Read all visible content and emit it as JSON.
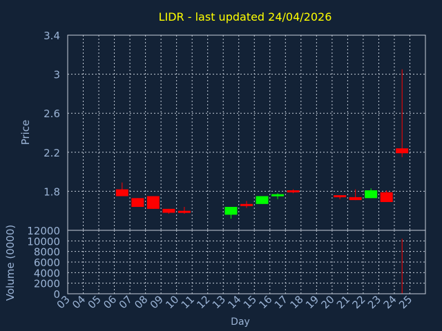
{
  "colors": {
    "background": "#132236",
    "frame": "#c8d0dc",
    "grid": "#c8d0dc",
    "axis_text": "#9bb4d6",
    "title": "#ffff00",
    "up": "#00ff00",
    "down": "#ff0000",
    "volume": "#ff0000"
  },
  "chart_data": [
    {
      "type": "candlestick",
      "title": "LIDR - last updated 24/04/2026",
      "ylabel": "Price",
      "ylim": [
        1.4,
        3.4
      ],
      "yticks": [
        "3.4",
        "3",
        "2.6",
        "2.2",
        "1.8"
      ],
      "ytick_values": [
        3.4,
        3.0,
        2.6,
        2.2,
        1.8
      ],
      "grid": true,
      "x_days": [
        "03",
        "04",
        "05",
        "06",
        "07",
        "08",
        "09",
        "10",
        "11",
        "12",
        "13",
        "14",
        "15",
        "16",
        "17",
        "18",
        "19",
        "20",
        "21",
        "22",
        "23",
        "24",
        "25"
      ],
      "candles": [
        {
          "day": "06",
          "open": 1.82,
          "close": 1.75,
          "high": 1.89,
          "low": 1.75,
          "dir": "down"
        },
        {
          "day": "07",
          "open": 1.73,
          "close": 1.64,
          "high": 1.73,
          "low": 1.64,
          "dir": "down"
        },
        {
          "day": "08",
          "open": 1.75,
          "close": 1.62,
          "high": 1.75,
          "low": 1.62,
          "dir": "down"
        },
        {
          "day": "09",
          "open": 1.62,
          "close": 1.58,
          "high": 1.62,
          "low": 1.57,
          "dir": "down"
        },
        {
          "day": "10",
          "open": 1.6,
          "close": 1.58,
          "high": 1.64,
          "low": 1.57,
          "dir": "down"
        },
        {
          "day": "13",
          "open": 1.56,
          "close": 1.64,
          "high": 1.64,
          "low": 1.52,
          "dir": "up"
        },
        {
          "day": "14",
          "open": 1.67,
          "close": 1.65,
          "high": 1.7,
          "low": 1.63,
          "dir": "down"
        },
        {
          "day": "15",
          "open": 1.67,
          "close": 1.75,
          "high": 1.75,
          "low": 1.67,
          "dir": "up"
        },
        {
          "day": "16",
          "open": 1.76,
          "close": 1.77,
          "high": 1.78,
          "low": 1.72,
          "dir": "up"
        },
        {
          "day": "17",
          "open": 1.81,
          "close": 1.8,
          "high": 1.82,
          "low": 1.78,
          "dir": "down"
        },
        {
          "day": "20",
          "open": 1.76,
          "close": 1.74,
          "high": 1.76,
          "low": 1.72,
          "dir": "down"
        },
        {
          "day": "21",
          "open": 1.74,
          "close": 1.71,
          "high": 1.82,
          "low": 1.71,
          "dir": "down"
        },
        {
          "day": "22",
          "open": 1.73,
          "close": 1.81,
          "high": 1.83,
          "low": 1.73,
          "dir": "up"
        },
        {
          "day": "23",
          "open": 1.79,
          "close": 1.69,
          "high": 1.81,
          "low": 1.69,
          "dir": "down"
        },
        {
          "day": "24",
          "open": 2.24,
          "close": 2.19,
          "high": 3.05,
          "low": 2.15,
          "dir": "down"
        }
      ]
    },
    {
      "type": "bar",
      "ylabel": "Volume (0000)",
      "xlabel": "Day",
      "ylim": [
        0,
        12000
      ],
      "yticks": [
        "12000",
        "10000",
        "8000",
        "6000",
        "4000",
        "2000",
        "0"
      ],
      "ytick_values": [
        12000,
        10000,
        8000,
        6000,
        4000,
        2000,
        0
      ],
      "grid": true,
      "x_days": [
        "03",
        "04",
        "05",
        "06",
        "07",
        "08",
        "09",
        "10",
        "11",
        "12",
        "13",
        "14",
        "15",
        "16",
        "17",
        "18",
        "19",
        "20",
        "21",
        "22",
        "23",
        "24",
        "25"
      ],
      "values": [
        {
          "day": "24",
          "value": 10400
        }
      ]
    }
  ]
}
